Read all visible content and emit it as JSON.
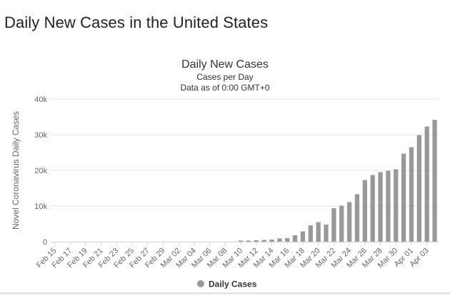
{
  "page": {
    "heading": "Daily New Cases in the United States"
  },
  "colors": {
    "bar": "#999999",
    "grid": "#e6e6e6",
    "axis_line": "#ccd6eb",
    "text": "#333333",
    "tick_text": "#666666"
  },
  "chart_data": {
    "type": "bar",
    "title": "Daily New Cases",
    "subtitle_lines": [
      "Cases per Day",
      "Data as of 0:00 GMT+0"
    ],
    "xlabel": "",
    "ylabel": "Novel Coronavirus Daily Cases",
    "ylim": [
      0,
      40000
    ],
    "yticks": [
      0,
      10000,
      20000,
      30000,
      40000
    ],
    "ytick_labels": [
      "0",
      "10k",
      "20k",
      "30k",
      "40k"
    ],
    "grid": true,
    "legend_position": "bottom-center",
    "categories": [
      "Feb 15",
      "Feb 16",
      "Feb 17",
      "Feb 18",
      "Feb 19",
      "Feb 20",
      "Feb 21",
      "Feb 22",
      "Feb 23",
      "Feb 24",
      "Feb 25",
      "Feb 26",
      "Feb 27",
      "Feb 28",
      "Feb 29",
      "Mar 01",
      "Mar 02",
      "Mar 03",
      "Mar 04",
      "Mar 05",
      "Mar 06",
      "Mar 07",
      "Mar 08",
      "Mar 09",
      "Mar 10",
      "Mar 11",
      "Mar 12",
      "Mar 13",
      "Mar 14",
      "Mar 15",
      "Mar 16",
      "Mar 17",
      "Mar 18",
      "Mar 19",
      "Mar 20",
      "Mar 21",
      "Mar 22",
      "Mar 23",
      "Mar 24",
      "Mar 25",
      "Mar 26",
      "Mar 27",
      "Mar 28",
      "Mar 29",
      "Mar 30",
      "Mar 31",
      "Apr 01",
      "Apr 02",
      "Apr 03",
      "Apr 04"
    ],
    "xtick_labels": [
      "Feb 15",
      "Feb 17",
      "Feb 19",
      "Feb 21",
      "Feb 23",
      "Feb 25",
      "Feb 27",
      "Feb 29",
      "Mar 02",
      "Mar 04",
      "Mar 06",
      "Mar 08",
      "Mar 10",
      "Mar 12",
      "Mar 14",
      "Mar 16",
      "Mar 18",
      "Mar 20",
      "Mar 22",
      "Mar 24",
      "Mar 26",
      "Mar 28",
      "Mar 30",
      "Apr 01",
      "Apr 03"
    ],
    "series": [
      {
        "name": "Daily Cases",
        "values": [
          0,
          0,
          0,
          0,
          0,
          0,
          0,
          0,
          0,
          0,
          0,
          0,
          0,
          0,
          0,
          0,
          0,
          0,
          0,
          0,
          0,
          0,
          0,
          0,
          300,
          300,
          400,
          500,
          600,
          900,
          1000,
          1800,
          2900,
          4600,
          5500,
          4800,
          9400,
          10100,
          11100,
          13300,
          17300,
          18700,
          19500,
          19900,
          20300,
          24700,
          26500,
          29900,
          32300,
          34200
        ]
      }
    ]
  }
}
